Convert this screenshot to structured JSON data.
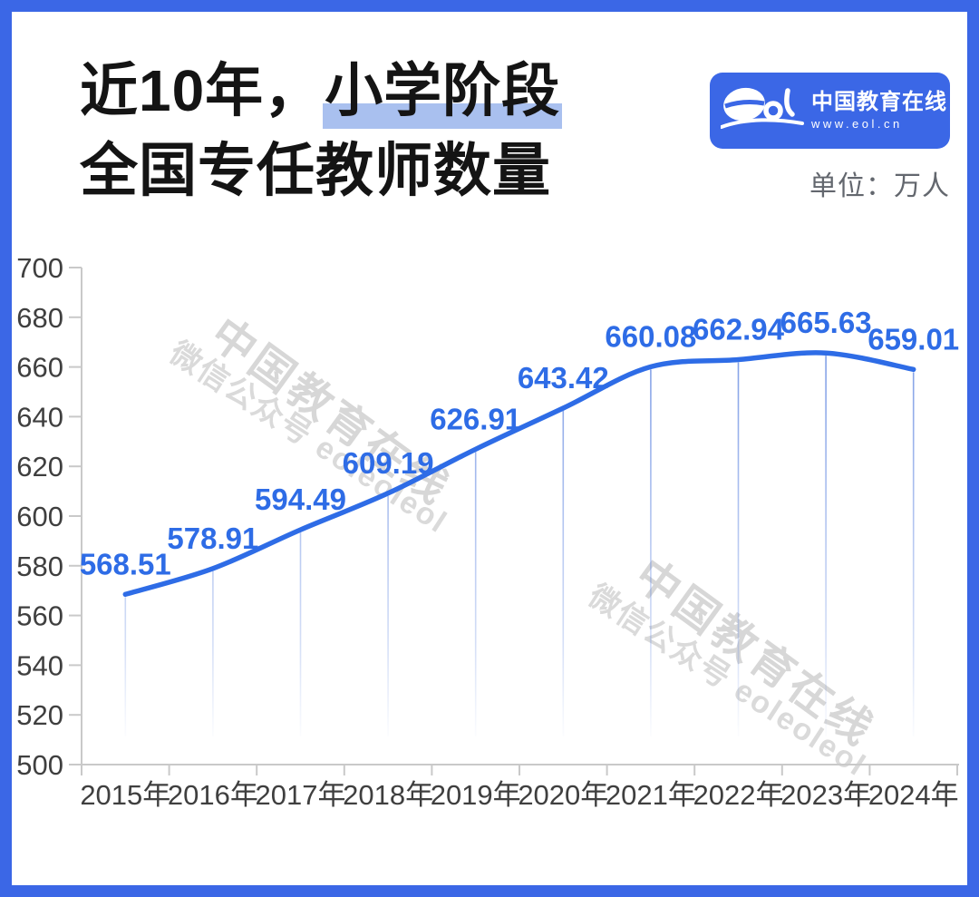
{
  "header": {
    "title_prefix": "近10年，",
    "title_highlight": "小学阶段",
    "title_line2": "全国专任教师数量",
    "unit_label": "单位：万人",
    "logo": {
      "mark": "eol",
      "name": "中国教育在线",
      "url": "www.eol.cn",
      "bg_color": "#3b67e6"
    }
  },
  "watermarks": {
    "brand": "中国教育在线",
    "wechat": "微信公众号 eoleoleol"
  },
  "colors": {
    "frame": "#3b67e6",
    "line": "#2e6ce6",
    "data_label": "#2e6ce6",
    "title_highlight_bg": "#a9c0ef",
    "axis_text": "#3f3f3f",
    "axis_line": "#c9c9c9",
    "unit_text": "#63676e"
  },
  "chart_data": {
    "type": "line",
    "title": "近10年，小学阶段全国专任教师数量",
    "unit": "万人",
    "categories": [
      "2015年",
      "2016年",
      "2017年",
      "2018年",
      "2019年",
      "2020年",
      "2021年",
      "2022年",
      "2023年",
      "2024年"
    ],
    "values": [
      568.51,
      578.91,
      594.49,
      609.19,
      626.91,
      643.42,
      660.08,
      662.94,
      665.63,
      659.01
    ],
    "ylim": [
      500,
      700
    ],
    "ytick_step": 20,
    "grid": "off",
    "legend": "none",
    "smooth": true,
    "line_color": "#2e6ce6",
    "label_color": "#2e6ce6",
    "drop_line_color": "#547dde"
  }
}
